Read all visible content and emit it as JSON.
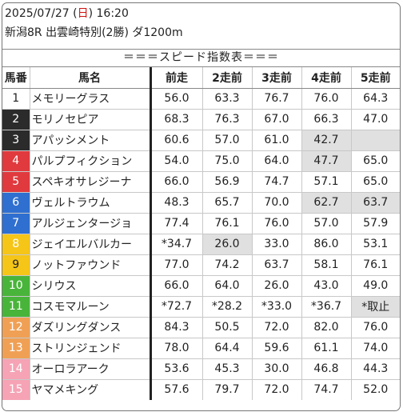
{
  "header": {
    "date_prefix": "2025/07/27 (",
    "weekday": "日",
    "date_suffix": ") 16:20",
    "race_line": "新潟8R 出雲崎特別(2勝) ダ1200m",
    "banner": "＝＝＝スピード指数表＝＝＝"
  },
  "table": {
    "headers": [
      "馬番",
      "馬名",
      "前走",
      "2走前",
      "3走前",
      "4走前",
      "5走前"
    ],
    "rows": [
      {
        "num": "1",
        "name": "メモリーグラス",
        "values": [
          "56.0",
          "63.3",
          "76.7",
          "76.0",
          "64.3"
        ],
        "gray": [
          false,
          false,
          false,
          false,
          false
        ]
      },
      {
        "num": "2",
        "name": "モリノセピア",
        "values": [
          "68.3",
          "76.3",
          "67.0",
          "66.3",
          "47.0"
        ],
        "gray": [
          false,
          false,
          false,
          false,
          false
        ]
      },
      {
        "num": "3",
        "name": "アパッシメント",
        "values": [
          "60.6",
          "57.0",
          "61.0",
          "42.7",
          ""
        ],
        "gray": [
          false,
          false,
          false,
          true,
          true
        ]
      },
      {
        "num": "4",
        "name": "パルプフィクション",
        "values": [
          "54.0",
          "75.0",
          "64.0",
          "47.7",
          "65.0"
        ],
        "gray": [
          false,
          false,
          false,
          true,
          false
        ]
      },
      {
        "num": "5",
        "name": "スペキオサレジーナ",
        "values": [
          "66.0",
          "56.9",
          "74.7",
          "57.1",
          "65.0"
        ],
        "gray": [
          false,
          false,
          false,
          false,
          false
        ]
      },
      {
        "num": "6",
        "name": "ヴェルトラウム",
        "values": [
          "48.3",
          "65.7",
          "70.0",
          "62.7",
          "63.7"
        ],
        "gray": [
          false,
          false,
          false,
          true,
          true
        ]
      },
      {
        "num": "7",
        "name": "アルジェンタージョ",
        "values": [
          "77.4",
          "76.1",
          "76.0",
          "57.0",
          "57.9"
        ],
        "gray": [
          false,
          false,
          false,
          false,
          false
        ]
      },
      {
        "num": "8",
        "name": "ジェイエルバルカー",
        "values": [
          "*34.7",
          "26.0",
          "33.0",
          "86.0",
          "53.1"
        ],
        "gray": [
          false,
          true,
          false,
          false,
          false
        ]
      },
      {
        "num": "9",
        "name": "ノットファウンド",
        "values": [
          "77.0",
          "74.2",
          "63.7",
          "58.1",
          "76.1"
        ],
        "gray": [
          false,
          false,
          false,
          false,
          false
        ]
      },
      {
        "num": "10",
        "name": "シリウス",
        "values": [
          "66.0",
          "64.0",
          "26.0",
          "43.0",
          "49.0"
        ],
        "gray": [
          false,
          false,
          false,
          false,
          false
        ]
      },
      {
        "num": "11",
        "name": "コスモマルーン",
        "values": [
          "*72.7",
          "*28.2",
          "*33.0",
          "*36.7",
          "*取止"
        ],
        "gray": [
          false,
          false,
          false,
          false,
          true
        ]
      },
      {
        "num": "12",
        "name": "ダズリングダンス",
        "values": [
          "84.3",
          "50.5",
          "72.0",
          "82.0",
          "76.0"
        ],
        "gray": [
          false,
          false,
          false,
          false,
          false
        ]
      },
      {
        "num": "13",
        "name": "ストリンジェンド",
        "values": [
          "78.0",
          "64.4",
          "59.6",
          "61.1",
          "74.0"
        ],
        "gray": [
          false,
          false,
          false,
          false,
          false
        ]
      },
      {
        "num": "14",
        "name": "オーロラアーク",
        "values": [
          "53.6",
          "45.3",
          "30.0",
          "46.8",
          "44.3"
        ],
        "gray": [
          false,
          false,
          false,
          false,
          false
        ]
      },
      {
        "num": "15",
        "name": "ヤマメキング",
        "values": [
          "57.6",
          "79.7",
          "72.0",
          "74.7",
          "52.0"
        ],
        "gray": [
          false,
          false,
          false,
          false,
          false
        ]
      }
    ]
  },
  "colors": {
    "weekday_red": "#d01010",
    "highlight_gray": "#e0e0e0",
    "waku": {
      "1": {
        "bg": "#ffffff",
        "fg": "#222222"
      },
      "2": {
        "bg": "#2b2b2b",
        "fg": "#ffffff"
      },
      "3": {
        "bg": "#2b2b2b",
        "fg": "#ffffff"
      },
      "4": {
        "bg": "#e03a3e",
        "fg": "#ffffff"
      },
      "5": {
        "bg": "#e03a3e",
        "fg": "#ffffff"
      },
      "6": {
        "bg": "#2f6fd0",
        "fg": "#ffffff"
      },
      "7": {
        "bg": "#2f6fd0",
        "fg": "#ffffff"
      },
      "8": {
        "bg": "#f5c518",
        "fg": "#ffffff"
      },
      "9": {
        "bg": "#f5c518",
        "fg": "#222222"
      },
      "10": {
        "bg": "#49b43a",
        "fg": "#ffffff"
      },
      "11": {
        "bg": "#49b43a",
        "fg": "#ffffff"
      },
      "12": {
        "bg": "#f0a055",
        "fg": "#ffffff"
      },
      "13": {
        "bg": "#f0a055",
        "fg": "#ffffff"
      },
      "14": {
        "bg": "#f5a3b5",
        "fg": "#ffffff"
      },
      "15": {
        "bg": "#f5a3b5",
        "fg": "#ffffff"
      }
    }
  }
}
